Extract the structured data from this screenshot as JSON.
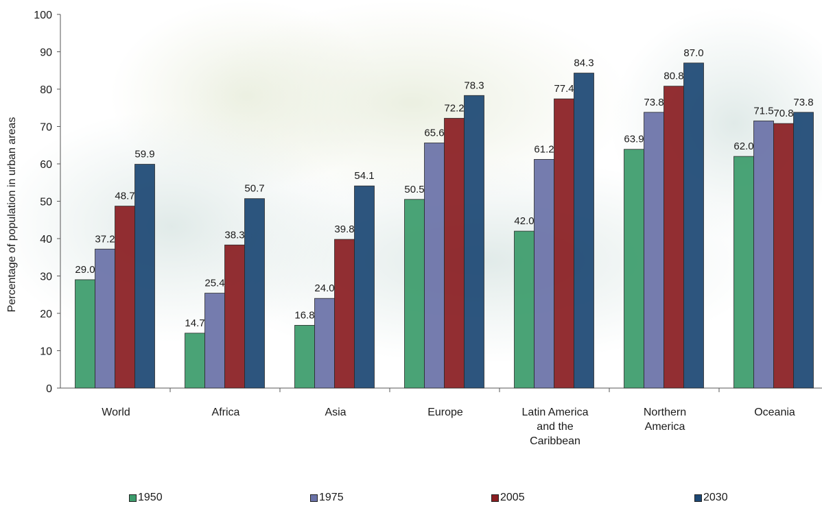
{
  "chart_data": {
    "type": "bar",
    "title": "",
    "xlabel": "",
    "ylabel": "Percentage of population in urban areas",
    "ylim": [
      0,
      100
    ],
    "yticks": [
      0,
      10,
      20,
      30,
      40,
      50,
      60,
      70,
      80,
      90,
      100
    ],
    "grid": false,
    "legend_position": "bottom",
    "categories": [
      [
        "World"
      ],
      [
        "Africa"
      ],
      [
        "Asia"
      ],
      [
        "Europe"
      ],
      [
        "Latin America",
        "and the",
        "Caribbean"
      ],
      [
        "Northern",
        "America"
      ],
      [
        "Oceania"
      ]
    ],
    "series": [
      {
        "name": "1950",
        "color": "#3c9c6c",
        "values": [
          29.0,
          14.7,
          16.8,
          50.5,
          42.0,
          63.9,
          62.0
        ],
        "labels": [
          "29.0",
          "14.7",
          "16.8",
          "50.5",
          "42.0",
          "63.9",
          "62.0"
        ]
      },
      {
        "name": "1975",
        "color": "#6a72a8",
        "values": [
          37.2,
          25.4,
          24.0,
          65.6,
          61.2,
          73.8,
          71.5
        ],
        "labels": [
          "37.2",
          "25.4",
          "24.0",
          "65.6",
          "61.2",
          "73.8",
          "71.5"
        ]
      },
      {
        "name": "2005",
        "color": "#8a1e22",
        "values": [
          48.7,
          38.3,
          39.8,
          72.2,
          77.4,
          80.8,
          70.8
        ],
        "labels": [
          "48.7",
          "38.3",
          "39.8",
          "72.2",
          "77.4",
          "80.8",
          "70.8"
        ]
      },
      {
        "name": "2030",
        "color": "#1d4874",
        "values": [
          59.9,
          50.7,
          54.1,
          78.3,
          84.3,
          87.0,
          73.8
        ],
        "labels": [
          "59.9",
          "50.7",
          "54.1",
          "78.3",
          "84.3",
          "87.0",
          "73.8"
        ]
      }
    ]
  }
}
